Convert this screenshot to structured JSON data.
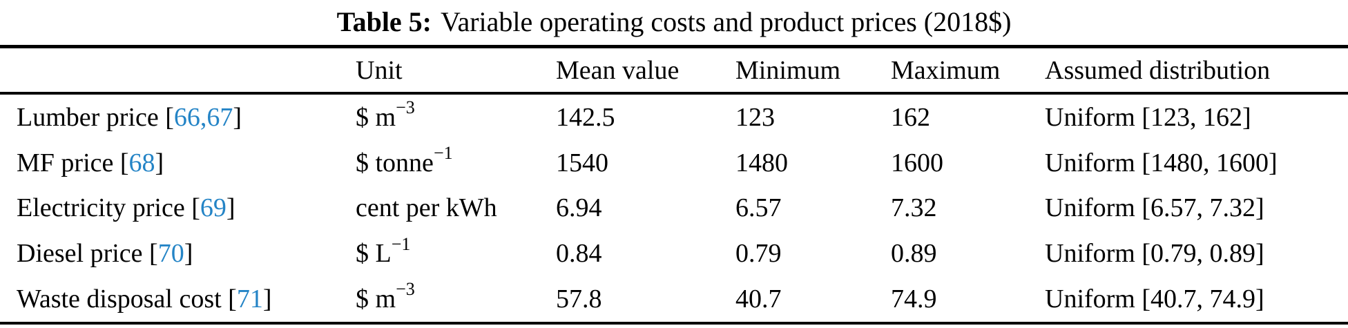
{
  "caption": {
    "label": "Table 5:",
    "text": "Variable operating costs and product prices (2018$)"
  },
  "citation_color": "#2484c6",
  "table": {
    "headers": [
      "",
      "Unit",
      "Mean value",
      "Minimum",
      "Maximum",
      "Assumed distribution"
    ],
    "rows": [
      {
        "label_prefix": "Lumber price [",
        "citation": "66,67",
        "label_suffix": "]",
        "unit": "$ m",
        "unit_sup": "−3",
        "mean": "142.5",
        "min": "123",
        "max": "162",
        "distribution": "Uniform [123, 162]"
      },
      {
        "label_prefix": "MF price [",
        "citation": "68",
        "label_suffix": "]",
        "unit": "$ tonne",
        "unit_sup": "−1",
        "mean": "1540",
        "min": "1480",
        "max": "1600",
        "distribution": "Uniform [1480, 1600]"
      },
      {
        "label_prefix": "Electricity price [",
        "citation": "69",
        "label_suffix": "]",
        "unit": "cent per kWh",
        "unit_sup": "",
        "mean": "6.94",
        "min": "6.57",
        "max": "7.32",
        "distribution": "Uniform [6.57, 7.32]"
      },
      {
        "label_prefix": "Diesel price [",
        "citation": "70",
        "label_suffix": "]",
        "unit": "$ L",
        "unit_sup": "−1",
        "mean": "0.84",
        "min": "0.79",
        "max": "0.89",
        "distribution": "Uniform [0.79, 0.89]"
      },
      {
        "label_prefix": "Waste disposal cost [",
        "citation": "71",
        "label_suffix": "]",
        "unit": "$ m",
        "unit_sup": "−3",
        "mean": "57.8",
        "min": "40.7",
        "max": "74.9",
        "distribution": "Uniform [40.7, 74.9]"
      }
    ]
  }
}
